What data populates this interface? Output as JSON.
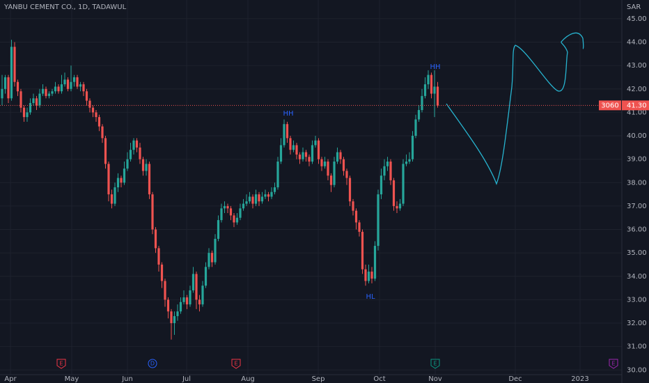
{
  "chart_data": {
    "type": "candlestick",
    "title": "YANBU CEMENT CO., 1D, TADAWUL",
    "currency": "SAR",
    "up_color": "#26a69a",
    "down_color": "#ef5350",
    "ylim": [
      29.8,
      45.8
    ],
    "yticks": [
      {
        "value": 30,
        "label": "30.00"
      },
      {
        "value": 31,
        "label": "31.00"
      },
      {
        "value": 32,
        "label": "32.00"
      },
      {
        "value": 33,
        "label": "33.00"
      },
      {
        "value": 34,
        "label": "34.00"
      },
      {
        "value": 35,
        "label": "35.00"
      },
      {
        "value": 36,
        "label": "36.00"
      },
      {
        "value": 37,
        "label": "37.00"
      },
      {
        "value": 38,
        "label": "38.00"
      },
      {
        "value": 39,
        "label": "39.00"
      },
      {
        "value": 40,
        "label": "40.00"
      },
      {
        "value": 41,
        "label": "41.00"
      },
      {
        "value": 42,
        "label": "42.00"
      },
      {
        "value": 43,
        "label": "43.00"
      },
      {
        "value": 44,
        "label": "44.00"
      },
      {
        "value": 45,
        "label": "45.00"
      }
    ],
    "xlabels": [
      "Apr",
      "May",
      "Jun",
      "Jul",
      "Aug",
      "Sep",
      "Oct",
      "Nov",
      "Dec",
      "2023"
    ],
    "last_price": {
      "value": 41.3,
      "label": "41.30"
    },
    "countdown": "3060",
    "annotations": [
      "HH",
      "HH",
      "HL"
    ],
    "events": [
      {
        "label": "E",
        "color": "#f23645"
      },
      {
        "label": "D",
        "color": "#2962ff"
      },
      {
        "label": "E",
        "color": "#f23645"
      },
      {
        "label": "E",
        "color": "#089981"
      },
      {
        "label": "E",
        "color": "#9c27b0"
      }
    ],
    "open": [
      41.6,
      42.0,
      42.5,
      41.6,
      43.8,
      42.3,
      41.9,
      41.2,
      40.8,
      41.0,
      41.4,
      41.6,
      41.3,
      41.8,
      42.0,
      41.7,
      41.8,
      41.9,
      42.1,
      41.9,
      42.2,
      42.4,
      42.0,
      42.3,
      42.5,
      42.1,
      42.2,
      41.9,
      41.5,
      41.2,
      41.0,
      40.8,
      40.4,
      39.9,
      38.8,
      37.5,
      37.1,
      37.8,
      38.2,
      38.0,
      38.6,
      39.0,
      39.4,
      39.8,
      39.5,
      39.0,
      38.5,
      38.8,
      37.5,
      36.0,
      35.2,
      34.5,
      33.8,
      33.0,
      32.5,
      32.0,
      32.3,
      32.5,
      32.9,
      33.1,
      32.8,
      33.4,
      34.1,
      33.0,
      32.8,
      33.6,
      34.4,
      35.0,
      34.6,
      35.6,
      36.4,
      36.9,
      37.0,
      36.9,
      36.6,
      36.3,
      36.5,
      36.9,
      37.1,
      37.2,
      37.4,
      37.1,
      37.5,
      37.2,
      37.4,
      37.5,
      37.4,
      37.6,
      37.8,
      38.9,
      39.6,
      40.5,
      39.9,
      39.4,
      39.6,
      39.2,
      39.0,
      39.3,
      39.1,
      38.9,
      39.6,
      39.8,
      39.0,
      38.7,
      38.9,
      38.3,
      37.9,
      38.9,
      39.3,
      39.0,
      38.5,
      38.2,
      37.2,
      36.8,
      36.3,
      35.9,
      34.3,
      33.8,
      34.2,
      33.9,
      35.3,
      37.5,
      38.3,
      38.7,
      38.9,
      38.1,
      37.0,
      36.9,
      37.1,
      38.8,
      38.9,
      39.0,
      40.0,
      40.7,
      41.1,
      41.7,
      42.2,
      42.6,
      41.8,
      42.1
    ],
    "high": [
      42.6,
      42.6,
      42.6,
      44.1,
      44.0,
      42.4,
      42.0,
      41.3,
      41.2,
      41.6,
      41.8,
      41.7,
      42.0,
      42.2,
      42.1,
      41.9,
      42.0,
      42.3,
      42.2,
      42.6,
      42.7,
      42.5,
      43.0,
      42.6,
      42.6,
      42.3,
      42.3,
      42.0,
      41.6,
      41.3,
      41.1,
      40.9,
      40.5,
      40.0,
      38.9,
      37.7,
      38.0,
      38.4,
      38.3,
      38.9,
      39.3,
      39.7,
      39.9,
      39.9,
      39.7,
      39.1,
      39.0,
      38.9,
      37.6,
      36.1,
      35.3,
      34.6,
      33.9,
      33.1,
      32.6,
      32.5,
      32.8,
      33.1,
      33.4,
      33.2,
      33.6,
      34.4,
      34.2,
      33.2,
      33.8,
      34.6,
      35.2,
      35.1,
      35.8,
      36.6,
      37.1,
      37.2,
      37.1,
      37.0,
      36.7,
      36.7,
      37.1,
      37.3,
      37.5,
      37.6,
      37.5,
      37.7,
      37.6,
      37.6,
      37.7,
      37.6,
      37.8,
      38.0,
      39.1,
      39.9,
      40.7,
      40.6,
      40.0,
      39.8,
      39.7,
      39.3,
      39.5,
      39.4,
      39.2,
      39.8,
      40.0,
      39.9,
      39.1,
      39.1,
      39.0,
      38.4,
      39.1,
      39.5,
      39.4,
      39.1,
      38.6,
      38.3,
      37.3,
      36.9,
      36.4,
      36.0,
      34.5,
      34.5,
      34.4,
      35.5,
      37.7,
      38.6,
      39.0,
      39.1,
      39.0,
      38.2,
      37.2,
      37.3,
      39.0,
      39.2,
      39.3,
      40.2,
      40.9,
      41.3,
      42.0,
      42.5,
      42.8,
      42.7,
      42.8,
      42.3
    ],
    "low": [
      41.3,
      41.8,
      41.4,
      41.5,
      42.1,
      41.7,
      41.0,
      40.6,
      40.6,
      40.9,
      41.3,
      41.1,
      41.2,
      41.7,
      41.6,
      41.6,
      41.7,
      41.8,
      41.8,
      41.8,
      42.1,
      41.9,
      41.9,
      42.1,
      42.0,
      41.9,
      41.7,
      41.3,
      41.0,
      40.8,
      40.6,
      40.2,
      39.7,
      38.6,
      37.2,
      36.9,
      37.0,
      37.6,
      37.8,
      37.9,
      38.5,
      38.9,
      39.2,
      39.3,
      38.8,
      38.3,
      38.3,
      37.3,
      35.8,
      35.0,
      34.2,
      33.5,
      32.7,
      32.2,
      31.3,
      31.5,
      32.1,
      32.4,
      32.8,
      32.6,
      32.7,
      33.3,
      32.6,
      32.5,
      32.7,
      33.5,
      34.3,
      34.4,
      34.5,
      35.5,
      36.3,
      36.7,
      36.7,
      36.4,
      36.1,
      36.2,
      36.4,
      36.8,
      37.0,
      37.1,
      36.9,
      37.0,
      37.0,
      37.1,
      37.3,
      37.2,
      37.3,
      37.5,
      37.7,
      38.8,
      39.5,
      39.7,
      39.2,
      39.3,
      39.0,
      38.8,
      38.9,
      38.9,
      38.7,
      38.8,
      39.5,
      38.8,
      38.5,
      38.6,
      38.1,
      37.6,
      37.8,
      38.8,
      38.8,
      38.3,
      37.9,
      37.0,
      36.6,
      36.0,
      35.7,
      34.1,
      33.6,
      33.7,
      33.7,
      33.8,
      35.1,
      37.3,
      38.1,
      38.5,
      37.9,
      36.8,
      36.7,
      36.8,
      37.0,
      38.7,
      38.8,
      38.9,
      39.9,
      40.6,
      41.0,
      41.6,
      42.0,
      41.6,
      40.8,
      41.2
    ],
    "close": [
      42.0,
      42.5,
      41.6,
      43.8,
      42.3,
      41.9,
      41.2,
      40.8,
      41.0,
      41.4,
      41.6,
      41.3,
      41.8,
      42.0,
      41.7,
      41.8,
      41.9,
      42.1,
      41.9,
      42.2,
      42.4,
      42.0,
      42.3,
      42.5,
      42.1,
      42.2,
      41.9,
      41.5,
      41.2,
      41.0,
      40.8,
      40.4,
      39.9,
      38.8,
      37.5,
      37.1,
      37.8,
      38.2,
      38.0,
      38.6,
      39.0,
      39.4,
      39.8,
      39.5,
      39.0,
      38.5,
      38.8,
      37.5,
      36.0,
      35.2,
      34.5,
      33.8,
      33.0,
      32.5,
      32.0,
      32.3,
      32.5,
      32.9,
      33.1,
      32.8,
      33.4,
      34.1,
      33.0,
      32.8,
      33.6,
      34.4,
      35.0,
      34.6,
      35.6,
      36.4,
      36.9,
      37.0,
      36.9,
      36.6,
      36.3,
      36.5,
      36.9,
      37.1,
      37.2,
      37.4,
      37.1,
      37.5,
      37.2,
      37.4,
      37.5,
      37.4,
      37.6,
      37.8,
      38.9,
      39.6,
      40.5,
      39.9,
      39.4,
      39.6,
      39.2,
      39.0,
      39.3,
      39.1,
      38.9,
      39.6,
      39.8,
      39.0,
      38.7,
      38.9,
      38.3,
      37.9,
      38.9,
      39.3,
      39.0,
      38.5,
      38.2,
      37.2,
      36.8,
      36.3,
      35.9,
      34.3,
      33.8,
      34.2,
      33.9,
      35.3,
      37.5,
      38.3,
      38.7,
      38.9,
      38.1,
      37.0,
      36.9,
      37.1,
      38.8,
      38.9,
      39.0,
      40.0,
      40.7,
      41.1,
      41.7,
      42.2,
      42.6,
      41.8,
      42.1,
      41.3
    ]
  }
}
